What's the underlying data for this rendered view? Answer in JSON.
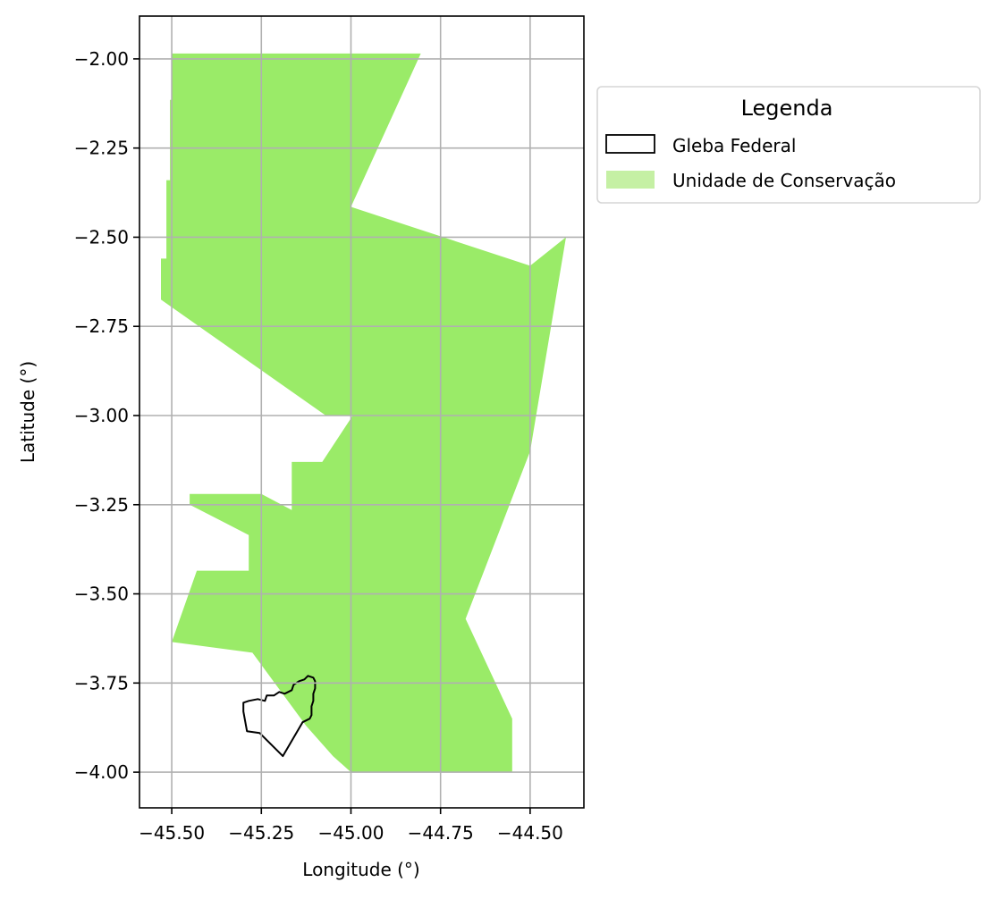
{
  "chart_data": {
    "type": "map",
    "xlabel": "Longitude (°)",
    "ylabel": "Latitude (°)",
    "xlim": [
      -45.59,
      -44.35
    ],
    "ylim": [
      -4.1,
      -1.88
    ],
    "grid": true,
    "x_ticks": [
      -45.5,
      -45.25,
      -45.0,
      -44.75,
      -44.5
    ],
    "x_tick_labels": [
      "−45.50",
      "−45.25",
      "−45.00",
      "−44.75",
      "−44.50"
    ],
    "y_ticks": [
      -2.0,
      -2.25,
      -2.5,
      -2.75,
      -3.0,
      -3.25,
      -3.5,
      -3.75,
      -4.0
    ],
    "y_tick_labels": [
      "−2.00",
      "−2.25",
      "−2.50",
      "−2.75",
      "−3.00",
      "−3.25",
      "−3.50",
      "−3.75",
      "−4.00"
    ],
    "legend": {
      "title": "Legenda",
      "placement": "outside-upper-right",
      "entries": [
        {
          "label": "Gleba Federal",
          "style": "outline",
          "color": "#000000"
        },
        {
          "label": "Unidade de Conservação",
          "style": "fill",
          "color": "#c5f0a4"
        }
      ]
    },
    "layers": [
      {
        "name": "Unidade de Conservação",
        "color": "#9aeb68",
        "polygons": [
          [
            [
              -45.5,
              -1.985
            ],
            [
              -44.805,
              -1.985
            ],
            [
              -45.0,
              -2.415
            ],
            [
              -44.5,
              -2.58
            ],
            [
              -44.4,
              -2.5
            ],
            [
              -44.5,
              -3.1
            ],
            [
              -44.68,
              -3.57
            ],
            [
              -44.55,
              -3.85
            ],
            [
              -44.55,
              -4.0
            ],
            [
              -45.0,
              -4.0
            ],
            [
              -45.05,
              -3.955
            ],
            [
              -45.125,
              -3.87
            ],
            [
              -45.275,
              -3.665
            ],
            [
              -45.5,
              -3.635
            ],
            [
              -45.43,
              -3.435
            ],
            [
              -45.285,
              -3.435
            ],
            [
              -45.285,
              -3.335
            ],
            [
              -45.45,
              -3.25
            ],
            [
              -45.45,
              -3.22
            ],
            [
              -45.25,
              -3.22
            ],
            [
              -45.165,
              -3.265
            ],
            [
              -45.165,
              -3.13
            ],
            [
              -45.08,
              -3.13
            ],
            [
              -44.995,
              -3.0
            ],
            [
              -45.07,
              -3.0
            ],
            [
              -45.53,
              -2.675
            ],
            [
              -45.53,
              -2.56
            ],
            [
              -45.515,
              -2.56
            ],
            [
              -45.515,
              -2.34
            ],
            [
              -45.505,
              -2.34
            ],
            [
              -45.505,
              -2.115
            ],
            [
              -45.5,
              -2.115
            ]
          ]
        ]
      },
      {
        "name": "Gleba Federal",
        "color": "#000000",
        "polygons": [
          [
            [
              -45.3,
              -3.805
            ],
            [
              -45.285,
              -3.8
            ],
            [
              -45.26,
              -3.795
            ],
            [
              -45.24,
              -3.8
            ],
            [
              -45.235,
              -3.785
            ],
            [
              -45.215,
              -3.785
            ],
            [
              -45.2,
              -3.775
            ],
            [
              -45.185,
              -3.78
            ],
            [
              -45.165,
              -3.77
            ],
            [
              -45.16,
              -3.755
            ],
            [
              -45.145,
              -3.745
            ],
            [
              -45.13,
              -3.74
            ],
            [
              -45.12,
              -3.73
            ],
            [
              -45.105,
              -3.735
            ],
            [
              -45.1,
              -3.745
            ],
            [
              -45.1,
              -3.765
            ],
            [
              -45.105,
              -3.78
            ],
            [
              -45.105,
              -3.8
            ],
            [
              -45.11,
              -3.815
            ],
            [
              -45.11,
              -3.84
            ],
            [
              -45.115,
              -3.85
            ],
            [
              -45.135,
              -3.86
            ],
            [
              -45.19,
              -3.955
            ],
            [
              -45.255,
              -3.89
            ],
            [
              -45.29,
              -3.885
            ],
            [
              -45.3,
              -3.83
            ]
          ]
        ]
      }
    ]
  }
}
